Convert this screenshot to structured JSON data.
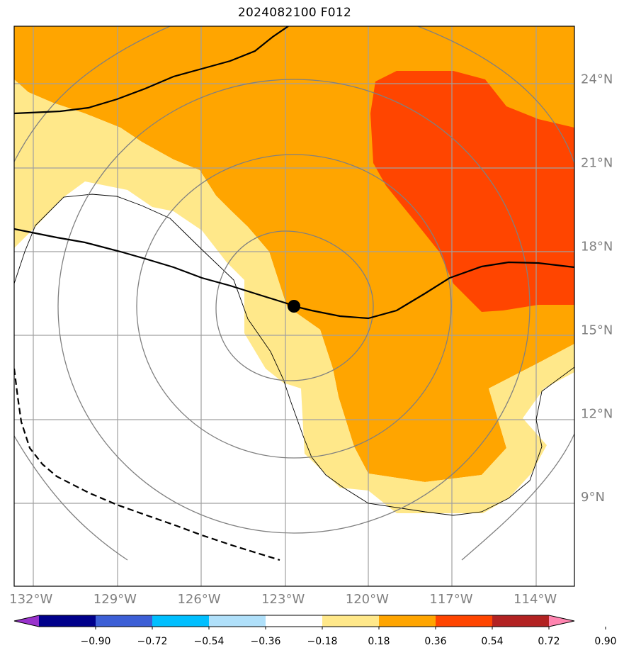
{
  "title": "2024082100 F012",
  "map": {
    "lon_range": [
      -132.6,
      -112.6
    ],
    "lat_range": [
      5.8,
      25.9
    ],
    "lon_ticks": [
      {
        "value": -132,
        "label": "132°W"
      },
      {
        "value": -129,
        "label": "129°W"
      },
      {
        "value": -126,
        "label": "126°W"
      },
      {
        "value": -123,
        "label": "123°W"
      },
      {
        "value": -120,
        "label": "120°W"
      },
      {
        "value": -117,
        "label": "117°W"
      },
      {
        "value": -114,
        "label": "114°W"
      }
    ],
    "lat_ticks": [
      {
        "value": 9,
        "label": "9°N"
      },
      {
        "value": 12,
        "label": "12°N"
      },
      {
        "value": 15,
        "label": "15°N"
      },
      {
        "value": 18,
        "label": "18°N"
      },
      {
        "value": 21,
        "label": "21°N"
      },
      {
        "value": 24,
        "label": "24°N"
      }
    ],
    "storm_center": {
      "lon": -122.7,
      "lat": 16.1
    },
    "colors": {
      "fill_036_054": "#ffa500",
      "fill_018_036": "#ffe88a",
      "fill_054_072": "#ff4500",
      "grid": "#a0a0a0",
      "contour": "#808080"
    }
  },
  "colorbar": {
    "bins": [
      {
        "color": "#9932cc"
      },
      {
        "color": "#00008b"
      },
      {
        "color": "#3c5fd6"
      },
      {
        "color": "#00bfff"
      },
      {
        "color": "#b0e0fa"
      },
      {
        "color": "#ffffff"
      },
      {
        "color": "#ffe88a"
      },
      {
        "color": "#ffa500"
      },
      {
        "color": "#ff4500"
      },
      {
        "color": "#b22222"
      },
      {
        "color": "#ff85b0"
      }
    ],
    "tick_labels": [
      "−0.90",
      "−0.72",
      "−0.54",
      "−0.36",
      "−0.18",
      "0.18",
      "0.36",
      "0.54",
      "0.72",
      "0.90"
    ]
  }
}
